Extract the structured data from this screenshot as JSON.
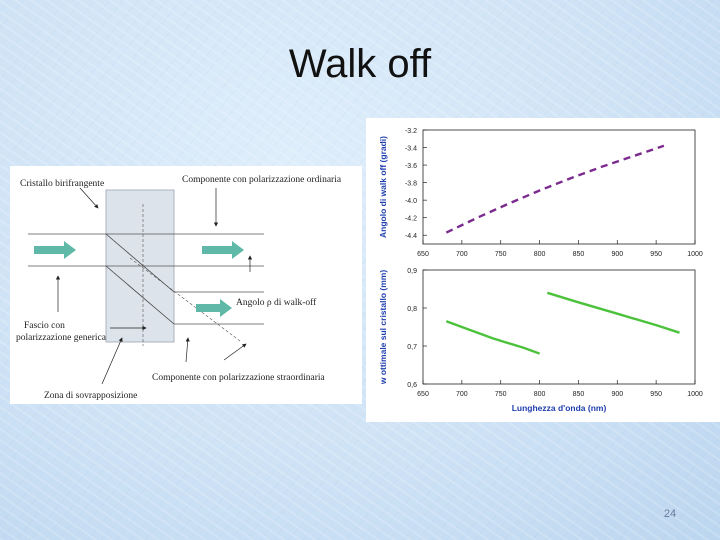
{
  "slide": {
    "title": "Walk off",
    "page_number": "24"
  },
  "diagram": {
    "labels": {
      "crystal": "Cristallo birifrangente",
      "ordinary": "Componente con polarizzazione ordinaria",
      "walkoff_angle": "Angolo ρ di walk-off",
      "input_beam_line1": "Fascio con",
      "input_beam_line2": "polarizzazione generica",
      "extraordinary": "Componente con polarizzazione straordinaria",
      "overlap": "Zona di sovrapposizione"
    },
    "colors": {
      "arrow": "#5fb8a8",
      "crystal": "#dfe4ea"
    }
  },
  "chart_data": [
    {
      "type": "line",
      "ylabel": "Angolo di walk off (gradi)",
      "xlabel": "",
      "xlim": [
        650,
        1000
      ],
      "ylim": [
        -4.5,
        -3.2
      ],
      "x_ticks": [
        "650",
        "700",
        "750",
        "800",
        "850",
        "900",
        "950",
        "1000"
      ],
      "y_ticks": [
        "-3.2",
        "-3.4",
        "-3.6",
        "-3.8",
        "-4.0",
        "-4.2",
        "-4.4"
      ],
      "series": [
        {
          "name": "walk-off",
          "style": "dashed",
          "color": "#7b2a8e",
          "x": [
            680,
            720,
            760,
            800,
            840,
            880,
            920,
            960
          ],
          "y": [
            -4.37,
            -4.2,
            -4.04,
            -3.89,
            -3.75,
            -3.62,
            -3.5,
            -3.38
          ]
        }
      ]
    },
    {
      "type": "line",
      "ylabel": "w ottimale sul cristallo (mm)",
      "xlabel": "Lunghezza d'onda (nm)",
      "xlim": [
        650,
        1000
      ],
      "ylim": [
        0.6,
        0.9
      ],
      "x_ticks": [
        "650",
        "700",
        "750",
        "800",
        "850",
        "900",
        "950",
        "1000"
      ],
      "y_ticks": [
        "0,9",
        "0,8",
        "0,7",
        "0,6"
      ],
      "series": [
        {
          "name": "segment-1",
          "style": "solid",
          "color": "#4cc23c",
          "x": [
            680,
            700,
            740,
            780,
            800
          ],
          "y": [
            0.765,
            0.75,
            0.72,
            0.695,
            0.68
          ]
        },
        {
          "name": "segment-2",
          "style": "solid",
          "color": "#4cc23c",
          "x": [
            810,
            850,
            900,
            950,
            980
          ],
          "y": [
            0.84,
            0.815,
            0.785,
            0.755,
            0.735
          ]
        }
      ]
    }
  ]
}
